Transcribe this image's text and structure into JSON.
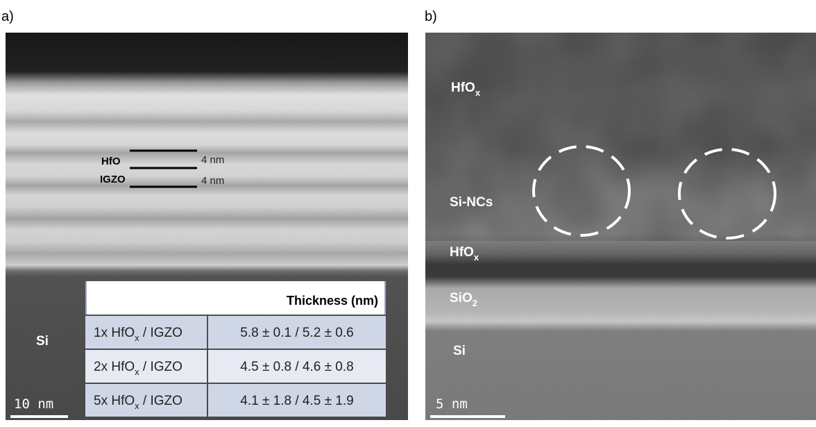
{
  "panel_a": {
    "label": "a)",
    "layer_labels": [
      "HfO",
      "IGZO"
    ],
    "thickness_labels": [
      "4 nm",
      "4 nm"
    ],
    "substrate": "Si",
    "scale_bar": "10 nm",
    "table": {
      "header": "Thickness (nm)",
      "rows": [
        {
          "sample": {
            "text": "1x HfO",
            "sub": "x",
            "rest": " / IGZO"
          },
          "thickness": "5.8 ± 0.1 / 5.2 ± 0.6"
        },
        {
          "sample": {
            "text": "2x HfO",
            "sub": "x",
            "rest": " / IGZO"
          },
          "thickness": "4.5 ± 0.8 / 4.6 ± 0.8"
        },
        {
          "sample": {
            "text": "5x HfO",
            "sub": "x",
            "rest": " / IGZO"
          },
          "thickness": "4.1 ± 1.8 / 4.5 ± 1.9"
        }
      ]
    }
  },
  "panel_b": {
    "label": "b)",
    "layers": [
      {
        "text": "HfO",
        "sub": "x"
      },
      {
        "text": "Si-NCs"
      },
      {
        "text": "HfO",
        "sub": "x"
      },
      {
        "text": "SiO",
        "sub": "2"
      },
      {
        "text": "Si"
      }
    ],
    "scale_bar": "5 nm"
  }
}
